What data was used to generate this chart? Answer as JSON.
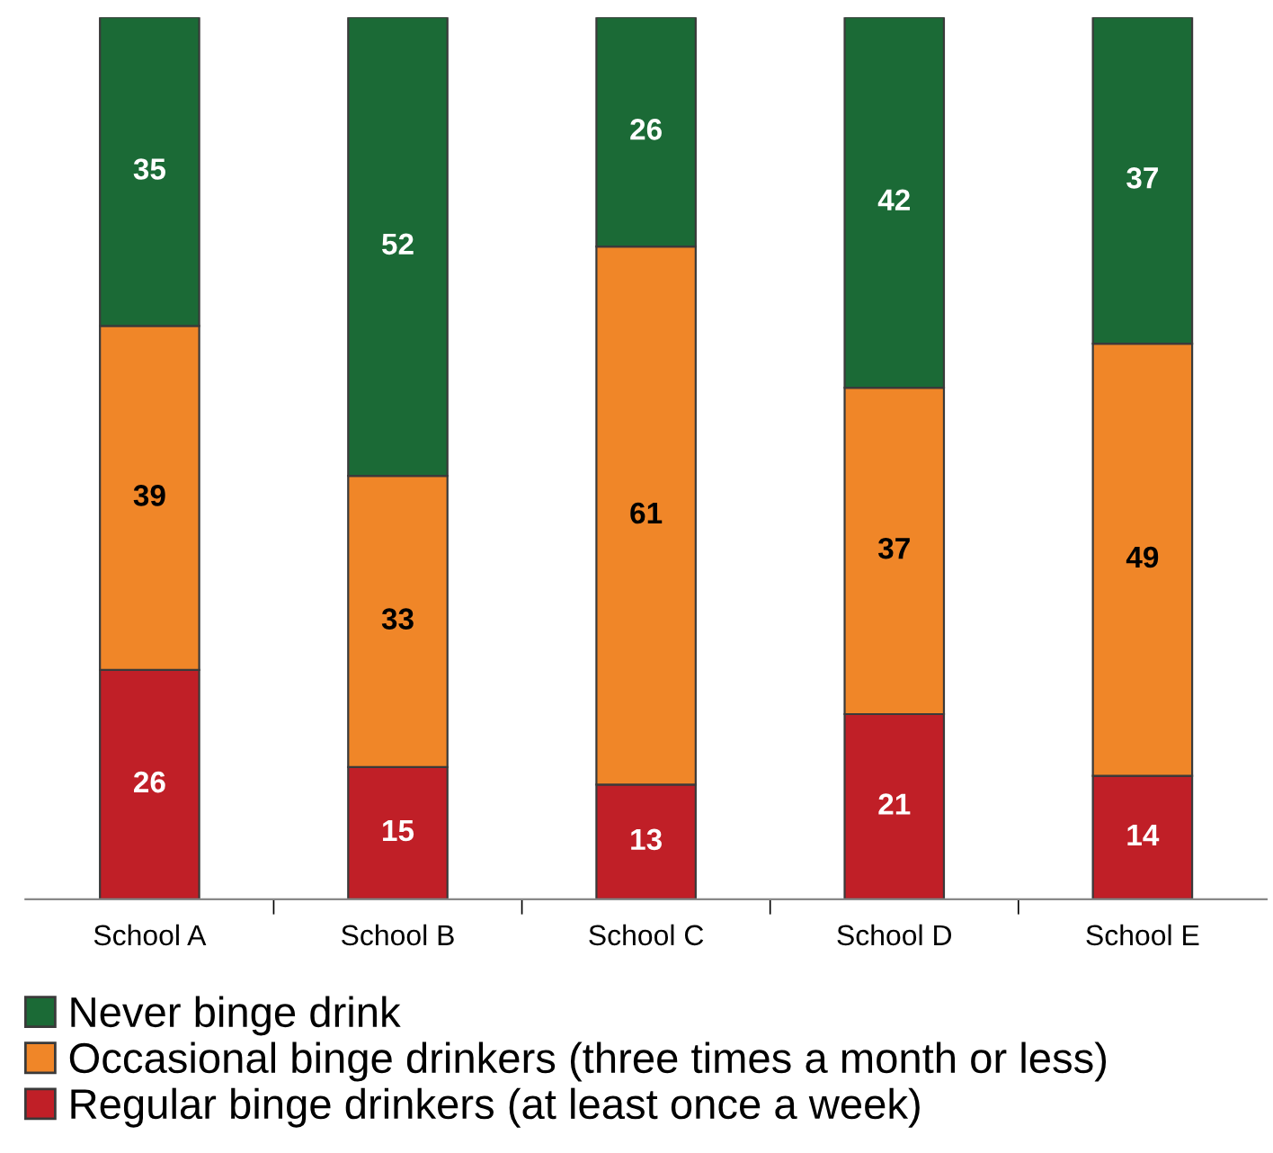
{
  "chart_data": {
    "type": "bar",
    "stacked": true,
    "categories": [
      "School A",
      "School B",
      "School C",
      "School D",
      "School E"
    ],
    "series": [
      {
        "name": "Regular binge drinkers (at least once a week)",
        "color": "#c01f27",
        "values": [
          26,
          15,
          13,
          21,
          14
        ]
      },
      {
        "name": "Occasional binge drinkers (three times a month or less)",
        "color": "#f08628",
        "values": [
          39,
          33,
          61,
          37,
          49
        ]
      },
      {
        "name": "Never binge drink",
        "color": "#1b6a36",
        "values": [
          35,
          52,
          26,
          42,
          37
        ]
      }
    ],
    "data_labels": true,
    "legend": "bottom",
    "tick_labels": "x",
    "grid": false
  }
}
